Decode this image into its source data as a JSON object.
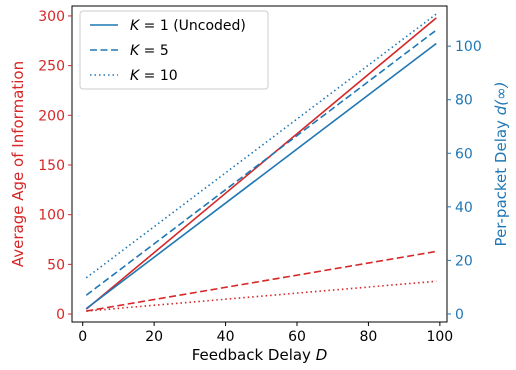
{
  "chart_data": {
    "type": "line",
    "xlabel_text": "Feedback Delay ",
    "xlabel_var": "D",
    "ylabel_left": "Average Age of Information",
    "ylabel_right_text": "Per-packet Delay ",
    "ylabel_right_var": "d(∞)",
    "x_ticks": [
      0,
      20,
      40,
      60,
      80,
      100
    ],
    "y_left_ticks": [
      0,
      50,
      100,
      150,
      200,
      250,
      300
    ],
    "y_right_ticks": [
      0,
      20,
      40,
      60,
      80,
      100
    ],
    "xlim": [
      -3,
      102
    ],
    "ylim_left": [
      -8,
      310
    ],
    "ylim_right": [
      -3,
      115
    ],
    "colors": {
      "left": "#d62728",
      "right": "#1f77b4",
      "axis": "#000000"
    },
    "legend": {
      "position": "top-left",
      "entries": [
        {
          "var": "K",
          "op": " = ",
          "num": "1",
          "suffix": " (Uncoded)",
          "style": "solid"
        },
        {
          "var": "K",
          "op": " = ",
          "num": "5",
          "suffix": "",
          "style": "dashed"
        },
        {
          "var": "K",
          "op": " = ",
          "num": "10",
          "suffix": "",
          "style": "dotted"
        }
      ]
    },
    "series": [
      {
        "axis": "left",
        "style": "solid",
        "x": [
          1,
          99
        ],
        "y": [
          5,
          298
        ]
      },
      {
        "axis": "left",
        "style": "dashed",
        "x": [
          1,
          99
        ],
        "y": [
          3,
          63
        ]
      },
      {
        "axis": "left",
        "style": "dotted",
        "x": [
          1,
          99
        ],
        "y": [
          3,
          33
        ]
      },
      {
        "axis": "right",
        "style": "solid",
        "x": [
          1,
          99
        ],
        "y": [
          2,
          101
        ]
      },
      {
        "axis": "right",
        "style": "dashed",
        "x": [
          1,
          99
        ],
        "y": [
          7,
          106
        ]
      },
      {
        "axis": "right",
        "style": "dotted",
        "x": [
          1,
          99
        ],
        "y": [
          13.5,
          112
        ]
      }
    ]
  }
}
